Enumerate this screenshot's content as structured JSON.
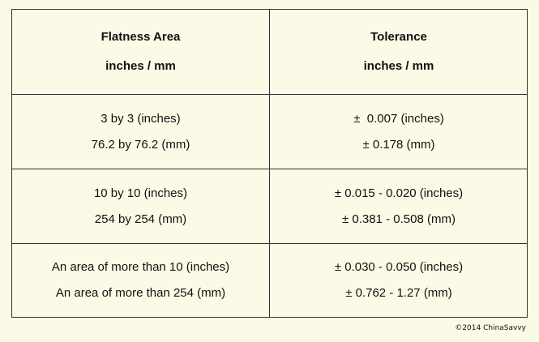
{
  "table": {
    "header": {
      "col1": {
        "line1": "Flatness Area",
        "line2": "inches / mm"
      },
      "col2": {
        "line1": "Tolerance",
        "line2": "inches / mm"
      }
    },
    "rows": [
      {
        "area": {
          "line1": "3 by 3 (inches)",
          "line2": "76.2 by 76.2 (mm)"
        },
        "tolerance": {
          "line1": "±  0.007 (inches)",
          "line2": "± 0.178 (mm)"
        }
      },
      {
        "area": {
          "line1": "10 by 10 (inches)",
          "line2": "254 by 254 (mm)"
        },
        "tolerance": {
          "line1": "± 0.015 - 0.020 (inches)",
          "line2": "± 0.381 - 0.508 (mm)"
        }
      },
      {
        "area": {
          "line1": "An area of more than 10 (inches)",
          "line2": "An area of more than 254 (mm)"
        },
        "tolerance": {
          "line1": "± 0.030 - 0.050 (inches)",
          "line2": "± 0.762 - 1.27 (mm)"
        }
      }
    ]
  },
  "footer": {
    "copyright": "©2014 ChinaSavvy"
  },
  "colors": {
    "background": "#fbfae6",
    "border": "#333333",
    "text": "#111111"
  }
}
